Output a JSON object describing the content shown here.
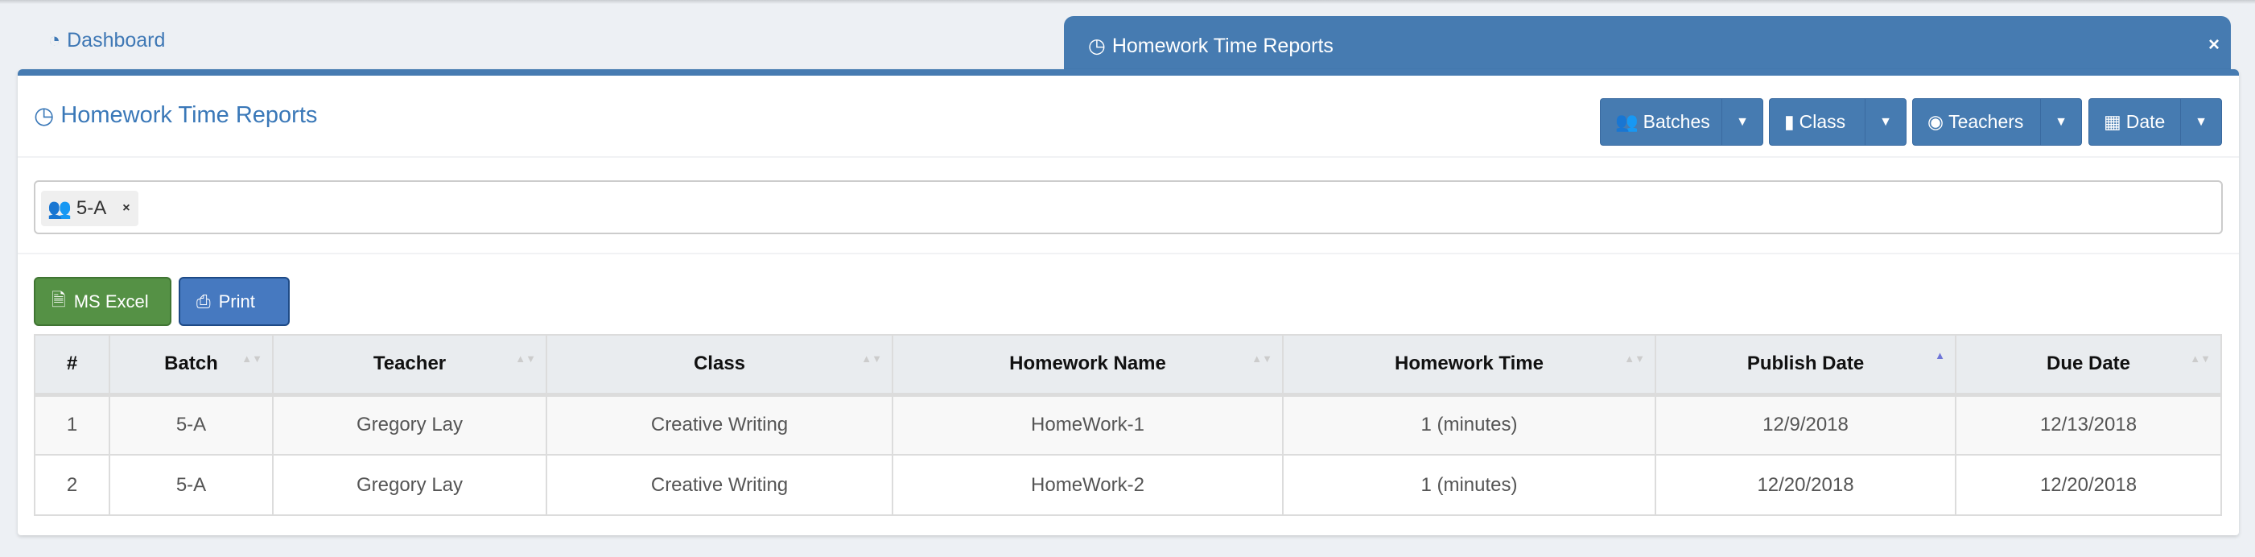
{
  "tabs": {
    "dashboard": "Dashboard",
    "active": "Homework Time Reports",
    "close": "×"
  },
  "panel": {
    "title": "Homework Time Reports"
  },
  "filters": {
    "batches": "Batches",
    "class": "Class",
    "teachers": "Teachers",
    "date": "Date"
  },
  "selected_filters": [
    {
      "icon": "users-icon",
      "label": "5-A",
      "remove": "×"
    }
  ],
  "actions": {
    "excel": "MS Excel",
    "print": "Print"
  },
  "table": {
    "headers": [
      "#",
      "Batch",
      "Teacher",
      "Class",
      "Homework Name",
      "Homework Time",
      "Publish Date",
      "Due Date"
    ],
    "sorted_column": "Publish Date",
    "sort_direction": "ascending",
    "rows": [
      [
        "1",
        "5-A",
        "Gregory Lay",
        "Creative Writing",
        "HomeWork-1",
        "1 (minutes)",
        "12/9/2018",
        "12/13/2018"
      ],
      [
        "2",
        "5-A",
        "Gregory Lay",
        "Creative Writing",
        "HomeWork-2",
        "1 (minutes)",
        "12/20/2018",
        "12/20/2018"
      ]
    ]
  },
  "colors": {
    "primary": "#467bb1",
    "excel": "#559145",
    "print": "#4679c0",
    "sort_active": "#6f76d8"
  }
}
